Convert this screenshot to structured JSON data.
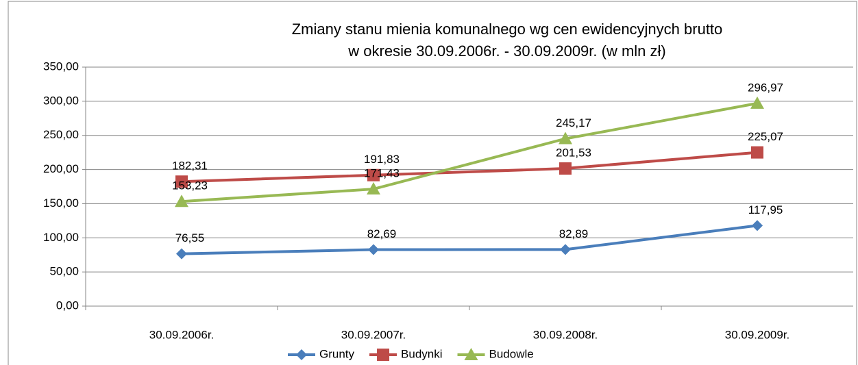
{
  "chart_data": {
    "type": "line",
    "title": [
      "Zmiany stanu mienia komunalnego  wg cen ewidencyjnych brutto",
      "w okresie 30.09.2006r. - 30.09.2009r. (w mln zł)"
    ],
    "categories": [
      "30.09.2006r.",
      "30.09.2007r.",
      "30.09.2008r.",
      "30.09.2009r."
    ],
    "series": [
      {
        "name": "Grunty",
        "color": "#4a7ebb",
        "marker": "diamond",
        "values": [
          76.55,
          82.69,
          82.89,
          117.95
        ],
        "value_labels": [
          "76,55",
          "82,69",
          "82,89",
          "117,95"
        ]
      },
      {
        "name": "Budynki",
        "color": "#be4b48",
        "marker": "square",
        "values": [
          182.31,
          191.83,
          201.53,
          225.07
        ],
        "value_labels": [
          "182,31",
          "191,83",
          "201,53",
          "225,07"
        ]
      },
      {
        "name": "Budowle",
        "color": "#98b954",
        "marker": "triangle",
        "values": [
          153.23,
          171.43,
          245.17,
          296.97
        ],
        "value_labels": [
          "153,23",
          "171,43",
          "245,17",
          "296,97"
        ]
      }
    ],
    "ylim": [
      0,
      350
    ],
    "yticks": [
      {
        "value": 0,
        "label": "0,00"
      },
      {
        "value": 50,
        "label": "50,00"
      },
      {
        "value": 100,
        "label": "100,00"
      },
      {
        "value": 150,
        "label": "150,00"
      },
      {
        "value": 200,
        "label": "200,00"
      },
      {
        "value": 250,
        "label": "250,00"
      },
      {
        "value": 300,
        "label": "300,00"
      },
      {
        "value": 350,
        "label": "350,00"
      }
    ],
    "grid": true,
    "legend": "bottom"
  }
}
